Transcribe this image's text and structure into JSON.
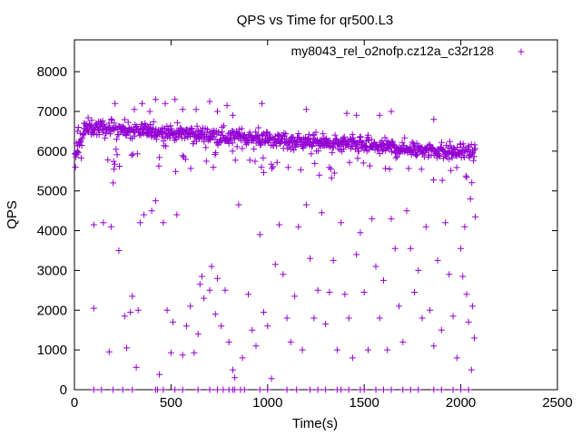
{
  "chart_data": {
    "type": "scatter",
    "title": "QPS vs Time for qr500.L3",
    "xlabel": "Time(s)",
    "ylabel": "QPS",
    "xlim": [
      0,
      2500
    ],
    "ylim": [
      0,
      8800
    ],
    "xticks": [
      0,
      500,
      1000,
      1500,
      2000,
      2500
    ],
    "yticks": [
      0,
      1000,
      2000,
      3000,
      4000,
      5000,
      6000,
      7000,
      8000
    ],
    "x_tick_labels": [
      "0",
      "500",
      "1000",
      "1500",
      "2000",
      "2500"
    ],
    "y_tick_labels": [
      "0",
      "1000",
      "2000",
      "3000",
      "4000",
      "5000",
      "6000",
      "7000",
      "8000"
    ],
    "legend": "top-right",
    "grid": false,
    "series": [
      {
        "name": "my8043_rel_o2nofp.cz12a_c32r128",
        "color": "#9400d3",
        "marker": "+",
        "trend": {
          "x_end": 2075,
          "level_start": 6600,
          "level_mid": 6400,
          "level_end": 5950
        },
        "points": [
          [
            5,
            5600
          ],
          [
            10,
            6200
          ],
          [
            15,
            6500
          ],
          [
            20,
            6600
          ],
          [
            30,
            6450
          ],
          [
            50,
            6700
          ],
          [
            70,
            6550
          ],
          [
            100,
            2050
          ],
          [
            100,
            4150
          ],
          [
            150,
            4200
          ],
          [
            180,
            950
          ],
          [
            190,
            4100
          ],
          [
            200,
            5200
          ],
          [
            205,
            5550
          ],
          [
            230,
            3500
          ],
          [
            260,
            1850
          ],
          [
            270,
            1050
          ],
          [
            290,
            1950
          ],
          [
            300,
            2350
          ],
          [
            320,
            560
          ],
          [
            330,
            2000
          ],
          [
            340,
            4200
          ],
          [
            360,
            4400
          ],
          [
            400,
            4500
          ],
          [
            420,
            4750
          ],
          [
            440,
            380
          ],
          [
            460,
            4200
          ],
          [
            480,
            2000
          ],
          [
            500,
            930
          ],
          [
            510,
            1700
          ],
          [
            530,
            4400
          ],
          [
            560,
            870
          ],
          [
            580,
            1600
          ],
          [
            600,
            2100
          ],
          [
            620,
            930
          ],
          [
            640,
            1400
          ],
          [
            650,
            2650
          ],
          [
            660,
            2850
          ],
          [
            670,
            2300
          ],
          [
            700,
            2500
          ],
          [
            710,
            3100
          ],
          [
            730,
            1900
          ],
          [
            740,
            2800
          ],
          [
            760,
            1600
          ],
          [
            780,
            2500
          ],
          [
            800,
            1200
          ],
          [
            820,
            500
          ],
          [
            830,
            300
          ],
          [
            850,
            4650
          ],
          [
            870,
            800
          ],
          [
            900,
            2400
          ],
          [
            920,
            1500
          ],
          [
            940,
            1100
          ],
          [
            960,
            3900
          ],
          [
            980,
            1950
          ],
          [
            1000,
            1600
          ],
          [
            1020,
            280
          ],
          [
            1040,
            3150
          ],
          [
            1060,
            4150
          ],
          [
            1080,
            2900
          ],
          [
            1100,
            1800
          ],
          [
            1120,
            1200
          ],
          [
            1140,
            2350
          ],
          [
            1160,
            4100
          ],
          [
            1180,
            1000
          ],
          [
            1200,
            4650
          ],
          [
            1220,
            3300
          ],
          [
            1240,
            1800
          ],
          [
            1260,
            2500
          ],
          [
            1280,
            4450
          ],
          [
            1300,
            1650
          ],
          [
            1320,
            2450
          ],
          [
            1340,
            3250
          ],
          [
            1360,
            1000
          ],
          [
            1380,
            4200
          ],
          [
            1400,
            2400
          ],
          [
            1420,
            1800
          ],
          [
            1440,
            800
          ],
          [
            1460,
            3400
          ],
          [
            1480,
            3950
          ],
          [
            1500,
            2450
          ],
          [
            1520,
            1000
          ],
          [
            1540,
            4300
          ],
          [
            1560,
            3100
          ],
          [
            1580,
            1800
          ],
          [
            1600,
            2750
          ],
          [
            1620,
            1000
          ],
          [
            1640,
            4300
          ],
          [
            1660,
            3550
          ],
          [
            1680,
            2100
          ],
          [
            1700,
            1200
          ],
          [
            1720,
            4500
          ],
          [
            1740,
            3550
          ],
          [
            1760,
            2450
          ],
          [
            1780,
            3000
          ],
          [
            1800,
            1800
          ],
          [
            1820,
            4100
          ],
          [
            1840,
            2000
          ],
          [
            1860,
            1100
          ],
          [
            1880,
            3250
          ],
          [
            1900,
            1500
          ],
          [
            1920,
            4200
          ],
          [
            1940,
            2900
          ],
          [
            1960,
            1850
          ],
          [
            1980,
            800
          ],
          [
            2000,
            3550
          ],
          [
            2010,
            2850
          ],
          [
            2020,
            4100
          ],
          [
            2030,
            2400
          ],
          [
            2040,
            1700
          ],
          [
            2050,
            4800
          ],
          [
            2055,
            500
          ],
          [
            2060,
            2100
          ],
          [
            2070,
            1300
          ],
          [
            2075,
            4350
          ]
        ],
        "high_outliers": [
          [
            210,
            7200
          ],
          [
            310,
            7050
          ],
          [
            350,
            7200
          ],
          [
            390,
            7000
          ],
          [
            420,
            7300
          ],
          [
            470,
            7200
          ],
          [
            520,
            7300
          ],
          [
            560,
            7050
          ],
          [
            630,
            7050
          ],
          [
            700,
            7250
          ],
          [
            740,
            7000
          ],
          [
            790,
            7150
          ],
          [
            820,
            6900
          ],
          [
            970,
            7200
          ],
          [
            1200,
            7050
          ],
          [
            1410,
            6950
          ],
          [
            1460,
            6900
          ],
          [
            1580,
            6900
          ],
          [
            1640,
            7000
          ],
          [
            1860,
            6800
          ]
        ],
        "zero_points": [
          [
            100,
            0
          ],
          [
            140,
            0
          ],
          [
            200,
            0
          ],
          [
            250,
            0
          ],
          [
            300,
            0
          ],
          [
            420,
            0
          ],
          [
            430,
            0
          ],
          [
            460,
            0
          ],
          [
            520,
            0
          ],
          [
            560,
            0
          ],
          [
            640,
            0
          ],
          [
            700,
            0
          ],
          [
            740,
            0
          ],
          [
            770,
            0
          ],
          [
            800,
            0
          ],
          [
            820,
            0
          ],
          [
            830,
            0
          ],
          [
            860,
            0
          ],
          [
            880,
            0
          ],
          [
            960,
            0
          ],
          [
            1000,
            0
          ],
          [
            1100,
            0
          ],
          [
            1150,
            0
          ],
          [
            1220,
            0
          ],
          [
            1260,
            0
          ],
          [
            1300,
            0
          ],
          [
            1360,
            0
          ],
          [
            1380,
            0
          ],
          [
            1420,
            0
          ],
          [
            1480,
            0
          ],
          [
            1500,
            0
          ],
          [
            1560,
            0
          ],
          [
            1600,
            0
          ],
          [
            1640,
            0
          ],
          [
            1700,
            0
          ],
          [
            1740,
            0
          ],
          [
            1780,
            0
          ],
          [
            1860,
            0
          ],
          [
            1900,
            0
          ],
          [
            1960,
            0
          ],
          [
            2000,
            0
          ],
          [
            2040,
            0
          ]
        ]
      }
    ]
  }
}
